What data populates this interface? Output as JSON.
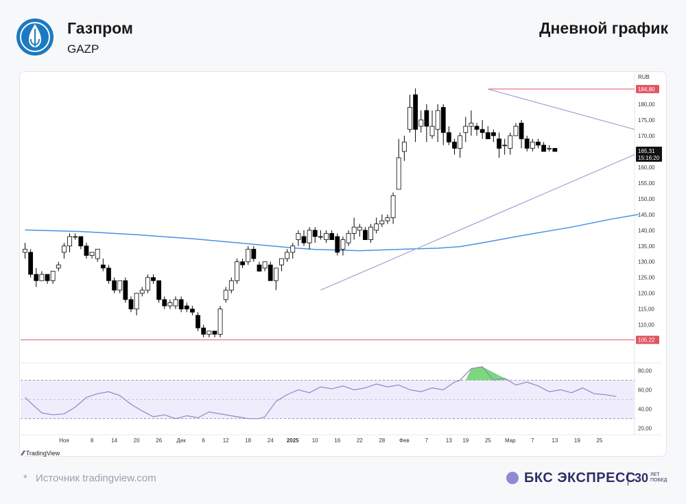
{
  "header": {
    "company": "Газпром",
    "ticker": "GAZP",
    "chart_kind": "Дневной график"
  },
  "footer": {
    "source_star": "*",
    "source": "Источник tradingview.com",
    "brand": "БКС ЭКСПРЕСС",
    "years_number": "30",
    "years_top": "ЛЕТ",
    "years_bottom": "ПОБЕД",
    "tv_label": "TradingView"
  },
  "colors": {
    "bull": "#ffffff",
    "bear": "#000000",
    "ma": "#4a90e2",
    "triangle": "#a89bd9",
    "level": "#e05563",
    "rsi_line": "#8f86c8",
    "rsi_band": "#efecfb",
    "rsi_overbought": "#7cd67f",
    "brand_accent": "#8e8ad6"
  },
  "chart_data": [
    {
      "type": "candlestick",
      "y_unit": "RUB",
      "ylim": [
        101,
        190
      ],
      "y_ticks": [
        110,
        115,
        120,
        125,
        130,
        135,
        140,
        145,
        150,
        155,
        160,
        165,
        170,
        175,
        180
      ],
      "y_tick_labels": [
        "110,00",
        "115,00",
        "120,00",
        "125,00",
        "130,00",
        "135,00",
        "140,00",
        "145,00",
        "150,00",
        "155,00",
        "160,00",
        "165,00",
        "170,00",
        "175,00",
        "180,00"
      ],
      "x_ticks": [
        {
          "i": 7,
          "label": "Ноя"
        },
        {
          "i": 12,
          "label": "8"
        },
        {
          "i": 16,
          "label": "14"
        },
        {
          "i": 20,
          "label": "20"
        },
        {
          "i": 24,
          "label": "26"
        },
        {
          "i": 28,
          "label": "Дек"
        },
        {
          "i": 32,
          "label": "6"
        },
        {
          "i": 36,
          "label": "12"
        },
        {
          "i": 40,
          "label": "18"
        },
        {
          "i": 44,
          "label": "24"
        },
        {
          "i": 48,
          "label": "2025"
        },
        {
          "i": 52,
          "label": "10"
        },
        {
          "i": 56,
          "label": "16"
        },
        {
          "i": 60,
          "label": "22"
        },
        {
          "i": 64,
          "label": "28"
        },
        {
          "i": 68,
          "label": "Фев"
        },
        {
          "i": 72,
          "label": "7"
        },
        {
          "i": 76,
          "label": "13"
        },
        {
          "i": 79,
          "label": "19"
        },
        {
          "i": 83,
          "label": "25"
        },
        {
          "i": 87,
          "label": "Мар"
        },
        {
          "i": 91,
          "label": "7"
        },
        {
          "i": 95,
          "label": "13"
        },
        {
          "i": 99,
          "label": "19"
        },
        {
          "i": 103,
          "label": "25"
        }
      ],
      "candles": [
        [
          133,
          134,
          136,
          131
        ],
        [
          133,
          126,
          134,
          125
        ],
        [
          126,
          124,
          128,
          122
        ],
        [
          124,
          126,
          127,
          124
        ],
        [
          126,
          124,
          126,
          123
        ],
        [
          124,
          127,
          127,
          123
        ],
        [
          128,
          129,
          130,
          127
        ],
        [
          133,
          135,
          136,
          131
        ],
        [
          135,
          138,
          139,
          133
        ],
        [
          138,
          138,
          139,
          137
        ],
        [
          138,
          135,
          138,
          134
        ],
        [
          135,
          132,
          136,
          131
        ],
        [
          132,
          133,
          133,
          131
        ],
        [
          131,
          134,
          134,
          130
        ],
        [
          129,
          128,
          131,
          127
        ],
        [
          128,
          124,
          129,
          123
        ],
        [
          124,
          121,
          125,
          120
        ],
        [
          121,
          124,
          124,
          120
        ],
        [
          124,
          118,
          125,
          117
        ],
        [
          118,
          115,
          119,
          114
        ],
        [
          115,
          120,
          120,
          113
        ],
        [
          120,
          121,
          122,
          119
        ],
        [
          121,
          125,
          126,
          120
        ],
        [
          125,
          124,
          126,
          123
        ],
        [
          124,
          118,
          124,
          117
        ],
        [
          118,
          116,
          119,
          115
        ],
        [
          116,
          117,
          118,
          115
        ],
        [
          116,
          118,
          119,
          115
        ],
        [
          118,
          115,
          119,
          114
        ],
        [
          116,
          115,
          117,
          114
        ],
        [
          115,
          114,
          116,
          113
        ],
        [
          113,
          109,
          114,
          108
        ],
        [
          109,
          107,
          110,
          106
        ],
        [
          107,
          108,
          108,
          106
        ],
        [
          108,
          107,
          108,
          106
        ],
        [
          107,
          115,
          116,
          106
        ],
        [
          118,
          121,
          122,
          117
        ],
        [
          121,
          124,
          125,
          120
        ],
        [
          124,
          130,
          131,
          123
        ],
        [
          130,
          129,
          131,
          128
        ],
        [
          130,
          134,
          135,
          129
        ],
        [
          134,
          131,
          135,
          130
        ],
        [
          129,
          127,
          130,
          127
        ],
        [
          128,
          130,
          130,
          127
        ],
        [
          129,
          124,
          130,
          124
        ],
        [
          124,
          128,
          128,
          121
        ],
        [
          129,
          131,
          131,
          127
        ],
        [
          131,
          133,
          134,
          130
        ],
        [
          133,
          135,
          136,
          131
        ],
        [
          137,
          139,
          140,
          135
        ],
        [
          138,
          136,
          140,
          135
        ],
        [
          136,
          140,
          141,
          134
        ],
        [
          140,
          138,
          141,
          136
        ],
        [
          138,
          138,
          140,
          137
        ],
        [
          137,
          139,
          140,
          136
        ],
        [
          139,
          137,
          140,
          137
        ],
        [
          138,
          133,
          139,
          132
        ],
        [
          134,
          137,
          138,
          132
        ],
        [
          136,
          139,
          140,
          135
        ],
        [
          139,
          141,
          144,
          137
        ],
        [
          140,
          141,
          142,
          138
        ],
        [
          140,
          137,
          141,
          137
        ],
        [
          137,
          141,
          142,
          136
        ],
        [
          140,
          142,
          144,
          139
        ],
        [
          142,
          143,
          145,
          141
        ],
        [
          143,
          144,
          145,
          142
        ],
        [
          144,
          151,
          152,
          142
        ],
        [
          153,
          163,
          169,
          156
        ],
        [
          165,
          168,
          170,
          162
        ],
        [
          172,
          179,
          183,
          171
        ],
        [
          183,
          172,
          185,
          168
        ],
        [
          173,
          175,
          178,
          171
        ],
        [
          178,
          173,
          180,
          168
        ],
        [
          170,
          173,
          178,
          169
        ],
        [
          172,
          178,
          180,
          168
        ],
        [
          179,
          171,
          180,
          167
        ],
        [
          171,
          168,
          173,
          167
        ],
        [
          168,
          166,
          169,
          164
        ],
        [
          166,
          170,
          171,
          163
        ],
        [
          171,
          173,
          176,
          168
        ],
        [
          173,
          174,
          178,
          170
        ],
        [
          173,
          172,
          174,
          170
        ],
        [
          172,
          171,
          175,
          169
        ],
        [
          171,
          169,
          173,
          169
        ],
        [
          171,
          170,
          172,
          168
        ],
        [
          169,
          166,
          171,
          163
        ],
        [
          167,
          167,
          169,
          164
        ],
        [
          166,
          170,
          171,
          164
        ],
        [
          170,
          173,
          174,
          170
        ],
        [
          174,
          169,
          175,
          166
        ],
        [
          169,
          166,
          170,
          165
        ],
        [
          166,
          168,
          169,
          165
        ],
        [
          168,
          167,
          169,
          166
        ],
        [
          167,
          165,
          168,
          165
        ],
        [
          166,
          166,
          167,
          165
        ],
        [
          166,
          165,
          166,
          165
        ]
      ],
      "ma_200": [
        [
          0,
          140.1
        ],
        [
          10,
          139.6
        ],
        [
          20,
          138.6
        ],
        [
          30,
          137.3
        ],
        [
          40,
          135.7
        ],
        [
          48,
          134.4
        ],
        [
          52,
          133.9
        ],
        [
          60,
          133.5
        ],
        [
          68,
          134.0
        ],
        [
          74,
          134.3
        ],
        [
          78,
          134.8
        ],
        [
          82,
          136.0
        ],
        [
          90,
          138.6
        ],
        [
          98,
          141.0
        ],
        [
          105,
          143.5
        ],
        [
          110,
          145.0
        ]
      ],
      "levels": [
        {
          "value": 184.8,
          "label": "184,80",
          "from_i": 83
        },
        {
          "value": 105.22,
          "label": "105,22",
          "from_i": 0
        }
      ],
      "triangle": {
        "upper": [
          [
            83,
            184.8
          ],
          [
            110,
            172.0
          ]
        ],
        "lower": [
          [
            53,
            121
          ],
          [
            110,
            164.0
          ]
        ]
      },
      "last_price_label": "165,31",
      "last_time_label": "15:16:20"
    },
    {
      "type": "line",
      "name": "RSI",
      "ylim": [
        14,
        86
      ],
      "y_ticks": [
        20,
        40,
        60,
        80
      ],
      "y_tick_labels": [
        "20,00",
        "40,00",
        "60,00",
        "80,00"
      ],
      "bands": [
        30,
        70
      ],
      "values": [
        [
          0,
          52
        ],
        [
          3,
          36
        ],
        [
          5,
          34
        ],
        [
          7,
          35
        ],
        [
          9,
          42
        ],
        [
          11,
          52
        ],
        [
          13,
          56
        ],
        [
          15,
          58
        ],
        [
          17,
          54
        ],
        [
          19,
          45
        ],
        [
          21,
          38
        ],
        [
          23,
          32
        ],
        [
          25,
          34
        ],
        [
          27,
          30
        ],
        [
          29,
          33
        ],
        [
          31,
          31
        ],
        [
          33,
          37
        ],
        [
          35,
          35
        ],
        [
          37,
          33
        ],
        [
          39,
          31
        ],
        [
          40,
          30
        ],
        [
          42,
          30
        ],
        [
          43,
          32
        ],
        [
          45,
          48
        ],
        [
          47,
          55
        ],
        [
          49,
          60
        ],
        [
          51,
          57
        ],
        [
          53,
          63
        ],
        [
          55,
          61
        ],
        [
          57,
          64
        ],
        [
          59,
          60
        ],
        [
          61,
          62
        ],
        [
          63,
          66
        ],
        [
          65,
          63
        ],
        [
          67,
          65
        ],
        [
          69,
          60
        ],
        [
          71,
          58
        ],
        [
          73,
          62
        ],
        [
          75,
          60
        ],
        [
          77,
          68
        ],
        [
          78,
          70
        ],
        [
          80,
          82
        ],
        [
          82,
          84
        ],
        [
          84,
          70
        ],
        [
          86,
          72
        ],
        [
          88,
          65
        ],
        [
          90,
          68
        ],
        [
          92,
          64
        ],
        [
          94,
          58
        ],
        [
          96,
          60
        ],
        [
          98,
          57
        ],
        [
          100,
          62
        ],
        [
          102,
          56
        ],
        [
          104,
          55
        ],
        [
          106,
          53
        ]
      ]
    }
  ]
}
